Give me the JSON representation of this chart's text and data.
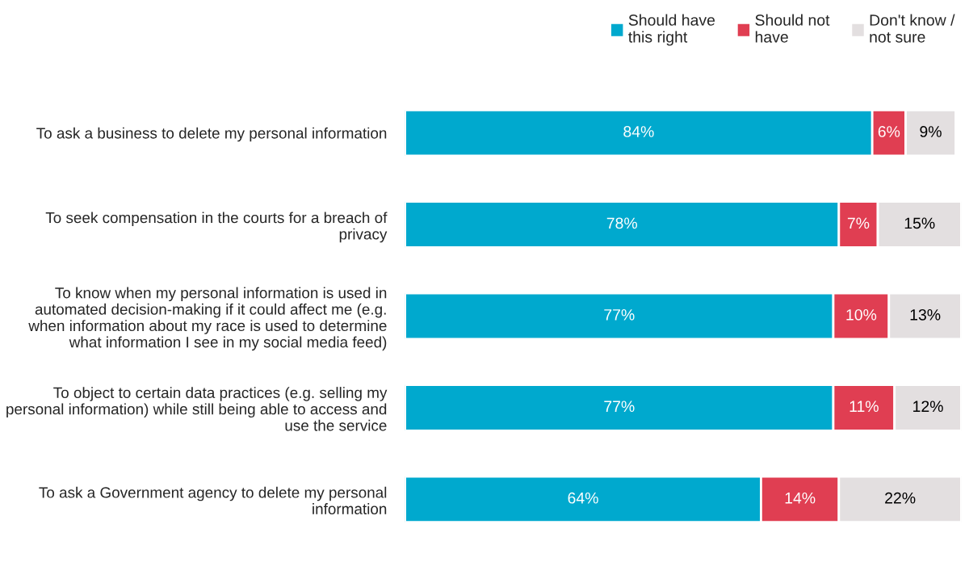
{
  "chart_data": {
    "type": "bar",
    "orientation": "horizontal",
    "stacked": true,
    "legend": "top right",
    "tick_labels": "y",
    "grid": false,
    "categories": [
      "To ask a business to delete my personal information",
      "To seek compensation in the courts for a breach of\nprivacy",
      "To know when my personal information is used in\nautomated decision-making if it could affect me (e.g.\nwhen information about my race is used to determine\nwhat information I see in my social media feed)",
      "To object to certain data practices (e.g. selling my\npersonal information) while still being able to access and\nuse the service",
      "To ask a Government agency to delete my personal\ninformation"
    ],
    "series": [
      {
        "name": "Should have\nthis right",
        "color": "#00a9ce",
        "values": [
          84,
          78,
          77,
          77,
          64
        ],
        "value_labels": [
          "84%",
          "78%",
          "77%",
          "77%",
          "64%"
        ]
      },
      {
        "name": "Should not\nhave",
        "color": "#e03e52",
        "values": [
          6,
          7,
          10,
          11,
          14
        ],
        "value_labels": [
          "6%",
          "7%",
          "10%",
          "11%",
          "14%"
        ]
      },
      {
        "name": "Don't know /\nnot sure",
        "color": "#e3dfe0",
        "values": [
          9,
          15,
          13,
          12,
          22
        ],
        "value_labels": [
          "9%",
          "15%",
          "13%",
          "12%",
          "22%"
        ]
      }
    ]
  }
}
